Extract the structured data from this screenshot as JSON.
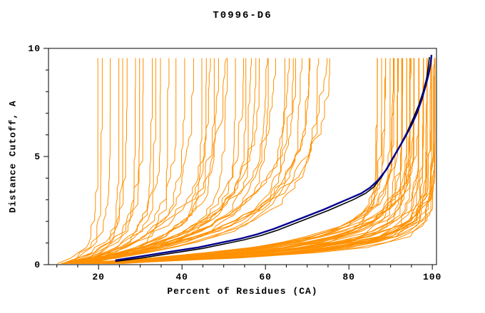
{
  "chart_data": {
    "type": "line",
    "title": "T0996-D6",
    "xlabel": "Percent of Residues (CA)",
    "ylabel": "Distance Cutoff, A",
    "xlim": [
      8,
      101
    ],
    "ylim": [
      0,
      10
    ],
    "x_major_ticks": [
      20,
      40,
      60,
      80,
      100
    ],
    "x_minor_ticks": [
      10,
      15,
      25,
      30,
      35,
      45,
      50,
      55,
      65,
      70,
      75,
      85,
      90,
      95
    ],
    "y_major_ticks": [
      0,
      5,
      10
    ],
    "y_minor_ticks": [
      1,
      2,
      3,
      4,
      6,
      7,
      8,
      9
    ],
    "colors": {
      "predictions": "#ff9000",
      "highlight_navy": "#000090",
      "highlight_black": "#000000",
      "axis": "#000000",
      "background": "#ffffff"
    },
    "y_sample": {
      "start": 0.05,
      "end": 9.7,
      "step": 0.25
    },
    "prediction_curves": {
      "format": "[x_at_zero_cutoff_percent, x_at_max_cutoff_percent, steepness, seed]",
      "params": [
        [
          10,
          19,
          1.6,
          1
        ],
        [
          11,
          22,
          1.2,
          2
        ],
        [
          10,
          24,
          1.8,
          3
        ],
        [
          12,
          26,
          1.0,
          4
        ],
        [
          11,
          28,
          1.4,
          5
        ],
        [
          13,
          30,
          0.9,
          6
        ],
        [
          10,
          32,
          1.3,
          7
        ],
        [
          12,
          34,
          1.1,
          8
        ],
        [
          11,
          36,
          1.5,
          9
        ],
        [
          13,
          38,
          0.8,
          10
        ],
        [
          10,
          20,
          2.0,
          11
        ],
        [
          11,
          25,
          1.7,
          12
        ],
        [
          12,
          29,
          1.2,
          13
        ],
        [
          13,
          33,
          1.0,
          14
        ],
        [
          11,
          40,
          0.9,
          15
        ],
        [
          13,
          42,
          0.7,
          16
        ],
        [
          10,
          44,
          1.1,
          17
        ],
        [
          14,
          46,
          0.6,
          18
        ],
        [
          12,
          48,
          0.8,
          19
        ],
        [
          15,
          50,
          0.5,
          20
        ],
        [
          11,
          52,
          1.0,
          21
        ],
        [
          13,
          54,
          0.7,
          22
        ],
        [
          10,
          56,
          0.9,
          23
        ],
        [
          14,
          58,
          0.6,
          24
        ],
        [
          12,
          60,
          0.8,
          25
        ],
        [
          16,
          62,
          0.5,
          26
        ],
        [
          11,
          64,
          0.9,
          27
        ],
        [
          13,
          66,
          0.7,
          28
        ],
        [
          10,
          68,
          0.8,
          29
        ],
        [
          15,
          70,
          0.6,
          30
        ],
        [
          12,
          72,
          0.7,
          31
        ],
        [
          14,
          74,
          0.5,
          32
        ],
        [
          11,
          45,
          1.0,
          33
        ],
        [
          13,
          55,
          0.8,
          34
        ],
        [
          10,
          65,
          0.6,
          35
        ],
        [
          15,
          75,
          0.5,
          36
        ],
        [
          12,
          50,
          0.9,
          37
        ],
        [
          14,
          60,
          0.7,
          38
        ],
        [
          11,
          70,
          0.6,
          39
        ],
        [
          13,
          47,
          0.8,
          40
        ],
        [
          10,
          57,
          0.7,
          41
        ],
        [
          16,
          67,
          0.5,
          42
        ],
        [
          11,
          88,
          1.2,
          43
        ],
        [
          13,
          90,
          1.5,
          44
        ],
        [
          10,
          92,
          1.8,
          45
        ],
        [
          15,
          94,
          1.1,
          46
        ],
        [
          12,
          96,
          1.4,
          47
        ],
        [
          17,
          98,
          1.7,
          48
        ],
        [
          11,
          100,
          2.0,
          49
        ],
        [
          14,
          86,
          1.3,
          50
        ],
        [
          10,
          99,
          2.2,
          51
        ],
        [
          16,
          91,
          1.0,
          52
        ],
        [
          12,
          93,
          1.6,
          53
        ],
        [
          18,
          95,
          1.2,
          54
        ],
        [
          11,
          97,
          1.9,
          55
        ],
        [
          13,
          99,
          1.4,
          56
        ],
        [
          10,
          90,
          1.1,
          57
        ],
        [
          15,
          100,
          1.8,
          58
        ],
        [
          12,
          87,
          1.5,
          59
        ],
        [
          17,
          92,
          1.2,
          60
        ],
        [
          11,
          94,
          2.1,
          61
        ],
        [
          14,
          96,
          1.0,
          62
        ],
        [
          10,
          98,
          1.6,
          63
        ],
        [
          16,
          100,
          1.3,
          64
        ],
        [
          12,
          89,
          1.9,
          65
        ],
        [
          19,
          95,
          1.1,
          66
        ],
        [
          11,
          91,
          1.4,
          67
        ],
        [
          13,
          93,
          1.7,
          68
        ],
        [
          10,
          95,
          1.0,
          69
        ],
        [
          15,
          97,
          2.0,
          70
        ],
        [
          12,
          99,
          1.2,
          71
        ],
        [
          18,
          100,
          1.5,
          72
        ],
        [
          11,
          86,
          1.8,
          73
        ],
        [
          14,
          88,
          1.1,
          74
        ],
        [
          10,
          100,
          1.35,
          75
        ],
        [
          17,
          96,
          1.65,
          76
        ],
        [
          12,
          94,
          1.05,
          77
        ],
        [
          13,
          98,
          1.95,
          78
        ],
        [
          11,
          92,
          1.25,
          79
        ],
        [
          20,
          100,
          1.55,
          80
        ],
        [
          10,
          96,
          1.85,
          81
        ],
        [
          15,
          90,
          1.15,
          82
        ],
        [
          12,
          100,
          1.45,
          83
        ],
        [
          14,
          97,
          1.75,
          84
        ]
      ]
    },
    "highlight_curves": [
      {
        "name": "reference-black",
        "color_key": "highlight_black",
        "points": [
          [
            24,
            0.15
          ],
          [
            30,
            0.3
          ],
          [
            35,
            0.45
          ],
          [
            40,
            0.6
          ],
          [
            45,
            0.75
          ],
          [
            50,
            0.95
          ],
          [
            55,
            1.15
          ],
          [
            59,
            1.35
          ],
          [
            63,
            1.6
          ],
          [
            67,
            1.9
          ],
          [
            71,
            2.2
          ],
          [
            75,
            2.5
          ],
          [
            78,
            2.75
          ],
          [
            81,
            3.0
          ],
          [
            84,
            3.3
          ],
          [
            86,
            3.6
          ],
          [
            88,
            4.1
          ],
          [
            89.5,
            4.6
          ],
          [
            91,
            5.1
          ],
          [
            92.5,
            5.6
          ],
          [
            94,
            6.15
          ],
          [
            95.5,
            6.8
          ],
          [
            96.8,
            7.4
          ],
          [
            97.8,
            8.0
          ],
          [
            98.6,
            8.6
          ],
          [
            99.0,
            9.1
          ],
          [
            99.3,
            9.6
          ]
        ]
      },
      {
        "name": "best-model-navy",
        "color_key": "highlight_navy",
        "points": [
          [
            24,
            0.2
          ],
          [
            29,
            0.35
          ],
          [
            34,
            0.5
          ],
          [
            39,
            0.65
          ],
          [
            44,
            0.8
          ],
          [
            49,
            1.0
          ],
          [
            54,
            1.2
          ],
          [
            58,
            1.4
          ],
          [
            62,
            1.65
          ],
          [
            66,
            1.95
          ],
          [
            70,
            2.25
          ],
          [
            74,
            2.55
          ],
          [
            77,
            2.8
          ],
          [
            80,
            3.05
          ],
          [
            83,
            3.3
          ],
          [
            85,
            3.55
          ],
          [
            87,
            3.9
          ],
          [
            89,
            4.4
          ],
          [
            90.5,
            4.9
          ],
          [
            92,
            5.4
          ],
          [
            93.5,
            5.9
          ],
          [
            95,
            6.45
          ],
          [
            96.3,
            7.0
          ],
          [
            97.4,
            7.6
          ],
          [
            98.3,
            8.2
          ],
          [
            99.1,
            8.8
          ],
          [
            99.6,
            9.3
          ],
          [
            99.8,
            9.7
          ]
        ]
      }
    ]
  }
}
